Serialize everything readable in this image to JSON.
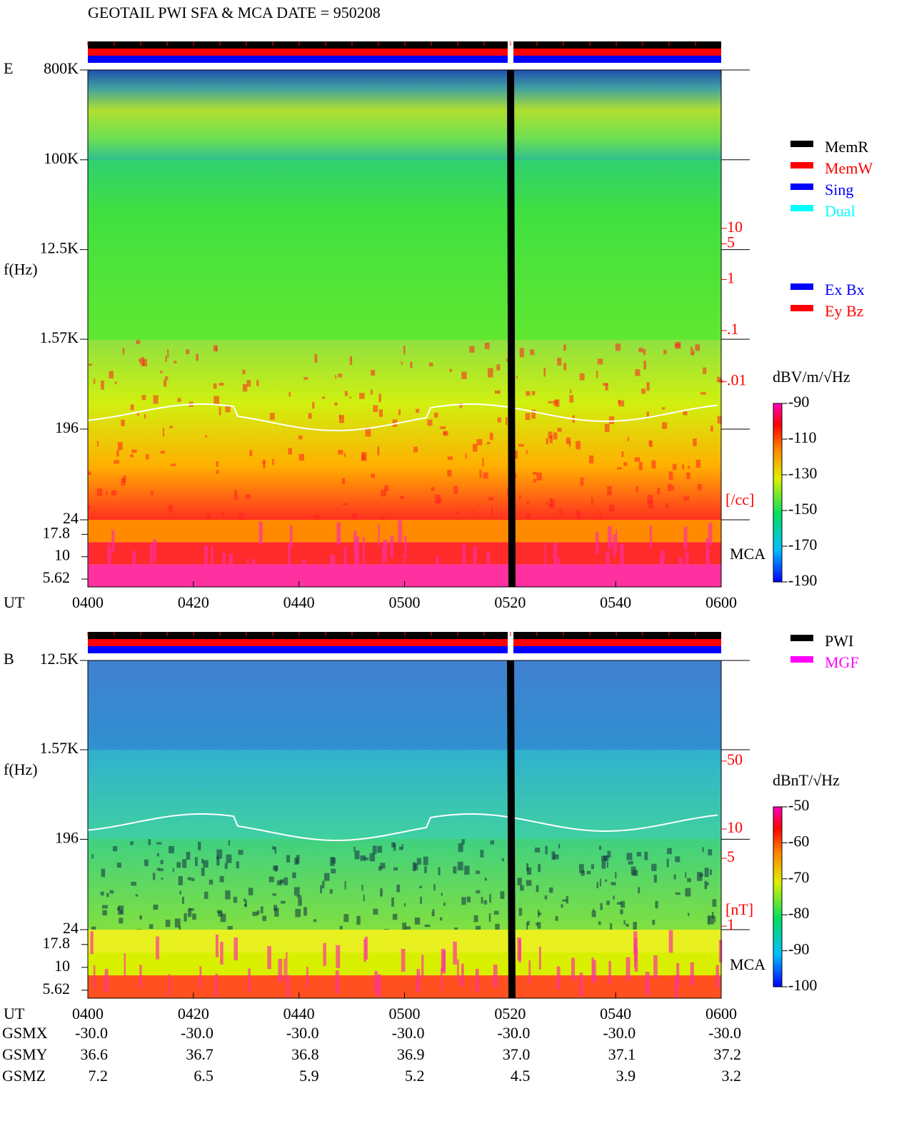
{
  "title": "GEOTAIL  PWI SFA & MCA  DATE = 950208",
  "chart_data": [
    {
      "type": "spectrogram",
      "label": "E",
      "ylabel": "f(Hz)",
      "yscale": "log",
      "ylim": [
        24,
        800000
      ],
      "yticks": [
        {
          "value": 800000,
          "label": "800K"
        },
        {
          "value": 100000,
          "label": "100K"
        },
        {
          "value": 12500,
          "label": "12.5K"
        },
        {
          "value": 1570,
          "label": "1.57K"
        },
        196,
        24
      ],
      "mca_label": "MCA",
      "mca_channels": [
        "17.8",
        "10",
        "5.62"
      ],
      "y2scale": "log",
      "y2lim": [
        2e-05,
        12500
      ],
      "y2label": "[/cc]",
      "y2ticks": [
        10,
        5,
        1,
        {
          "value": 0.1,
          "label": ".1"
        },
        {
          "value": 0.01,
          "label": ".01"
        }
      ],
      "xlabel": "UT",
      "categories": [
        "0400",
        "0420",
        "0440",
        "0500",
        "0520",
        "0540",
        "0600"
      ],
      "colorbar": {
        "label": "dBV/m/√Hz",
        "lim": [
          -190,
          -90
        ],
        "ticks": [
          -90,
          -110,
          -130,
          -150,
          -170,
          -190
        ]
      },
      "legend": [
        [
          {
            "label": "MemR",
            "color": "#000000"
          },
          {
            "label": "MemW",
            "color": "#ff0000"
          },
          {
            "label": "Sing",
            "color": "#0000ff"
          },
          {
            "label": "Dual",
            "color": "#00ffff"
          }
        ],
        [
          {
            "label": "Ex Bx",
            "color": "#0000ff"
          },
          {
            "label": "Ey Bz",
            "color": "#ff0000"
          }
        ]
      ]
    },
    {
      "type": "spectrogram",
      "label": "B",
      "ylabel": "f(Hz)",
      "yscale": "log",
      "ylim": [
        24,
        12500
      ],
      "yticks": [
        {
          "value": 12500,
          "label": "12.5K"
        },
        {
          "value": 1570,
          "label": "1.57K"
        },
        196,
        24
      ],
      "mca_label": "MCA",
      "mca_channels": [
        "17.8",
        "10",
        "5.62"
      ],
      "y2scale": "log",
      "y2lim": [
        0.92,
        543
      ],
      "y2label": "[nT]",
      "y2ticks": [
        50,
        10,
        5,
        1
      ],
      "xlabel": "UT",
      "categories": [
        "0400",
        "0420",
        "0440",
        "0500",
        "0520",
        "0540",
        "0600"
      ],
      "colorbar": {
        "label": "dBnT/√Hz",
        "lim": [
          -100,
          -50
        ],
        "ticks": [
          -50,
          -60,
          -70,
          -80,
          -90,
          -100
        ]
      },
      "legend": [
        [
          {
            "label": "PWI",
            "color": "#000000"
          },
          {
            "label": "MGF",
            "color": "#ff00ff"
          }
        ]
      ]
    }
  ],
  "ephemeris": [
    {
      "name": "GSMX",
      "values": [
        "-30.0",
        "-30.0",
        "-30.0",
        "-30.0",
        "-30.0",
        "-30.0",
        "-30.0"
      ]
    },
    {
      "name": "GSMY",
      "values": [
        "36.6",
        "36.7",
        "36.8",
        "36.9",
        "37.0",
        "37.1",
        "37.2"
      ]
    },
    {
      "name": "GSMZ",
      "values": [
        "7.2",
        "6.5",
        "5.9",
        "5.2",
        "4.5",
        "3.9",
        "3.2"
      ]
    }
  ]
}
